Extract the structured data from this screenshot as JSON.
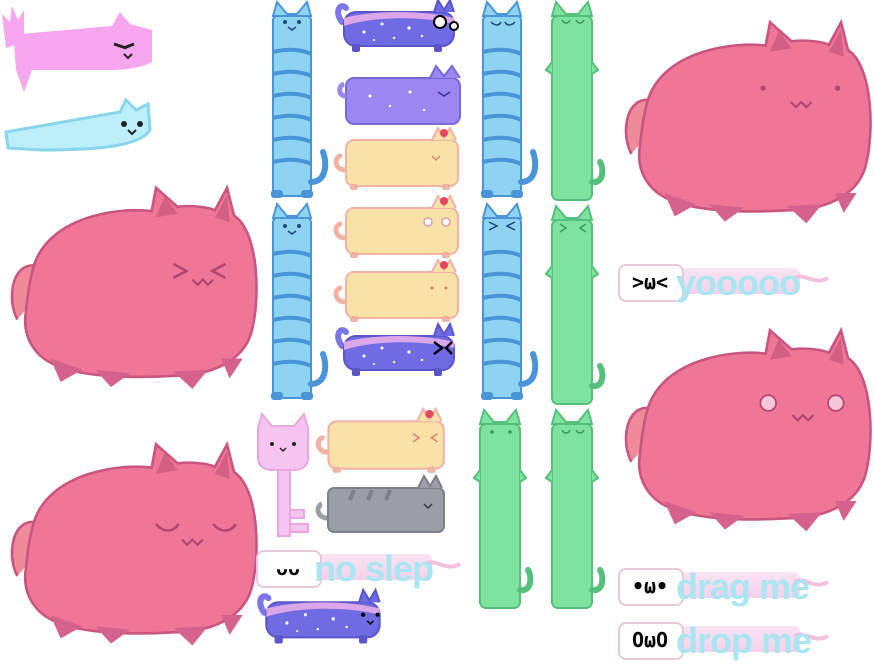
{
  "palette": {
    "big_cat": "#ef7396",
    "big_cat_dark": "#c9567e",
    "blue_spring": "#8fd3f3",
    "green_tall": "#7fe3a0",
    "purple_galaxy": "#7c77e9",
    "cream_cat": "#f7e1a6",
    "pink_key": "#f6c5ef",
    "gray_cat": "#9c9ea6"
  },
  "strips": [
    {
      "face": ">ω<",
      "text": "yooooo"
    },
    {
      "face": "ᴗᴗ",
      "text": "no slep"
    },
    {
      "face": "•ω•",
      "text": "drag me"
    },
    {
      "face": "OωO",
      "text": "drop me"
    }
  ],
  "sprites": [
    "pink-spiky-cat",
    "ice-cat",
    "big-pink-cat-squint",
    "big-pink-cat-sleepy",
    "blue-spring-cat-1",
    "blue-spring-cat-2",
    "galaxy-cat-1",
    "galaxy-cat-2",
    "galaxy-cat-3",
    "cream-cat-1",
    "cream-cat-2",
    "cream-cat-3",
    "cream-cat-4",
    "pink-key-cat",
    "gray-cat",
    "blue-spring-cat-3",
    "blue-spring-cat-4",
    "green-tall-cat-1",
    "green-tall-cat-2",
    "green-tall-cat-3",
    "green-tall-cat-4",
    "big-pink-cat-right-1",
    "big-pink-cat-right-2"
  ]
}
